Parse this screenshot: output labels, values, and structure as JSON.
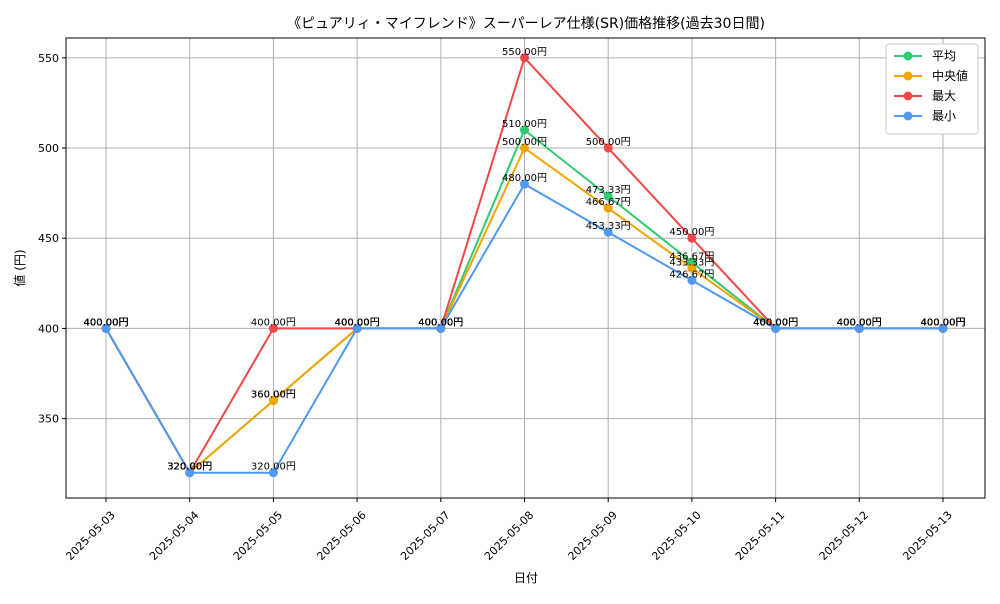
{
  "chart_data": {
    "type": "line",
    "title": "《ピュアリィ・マイフレンド》スーパーレア仕様(SR)価格推移(過去30日間)",
    "xlabel": "日付",
    "ylabel": "値 (円)",
    "categories": [
      "2025-05-03",
      "2025-05-04",
      "2025-05-05",
      "2025-05-06",
      "2025-05-07",
      "2025-05-08",
      "2025-05-09",
      "2025-05-10",
      "2025-05-11",
      "2025-05-12",
      "2025-05-13"
    ],
    "ylim": [
      306,
      561
    ],
    "yticks": [
      350,
      400,
      450,
      500,
      550
    ],
    "grid": true,
    "legend_position": "top-right",
    "value_suffix": "円",
    "series": [
      {
        "name": "平均",
        "color": "#2ecc71",
        "values": [
          400,
          320,
          360,
          400,
          400,
          510,
          473.33,
          436.67,
          400,
          400,
          400
        ]
      },
      {
        "name": "中央値",
        "color": "#f0a500",
        "values": [
          400,
          320,
          360,
          400,
          400,
          500,
          466.67,
          433.33,
          400,
          400,
          400
        ]
      },
      {
        "name": "最大",
        "color": "#f04848",
        "values": [
          400,
          320,
          400,
          400,
          400,
          550,
          500,
          450,
          400,
          400,
          400
        ]
      },
      {
        "name": "最小",
        "color": "#4f9af0",
        "values": [
          400,
          320,
          320,
          400,
          400,
          480,
          453.33,
          426.67,
          400,
          400,
          400
        ]
      }
    ]
  }
}
